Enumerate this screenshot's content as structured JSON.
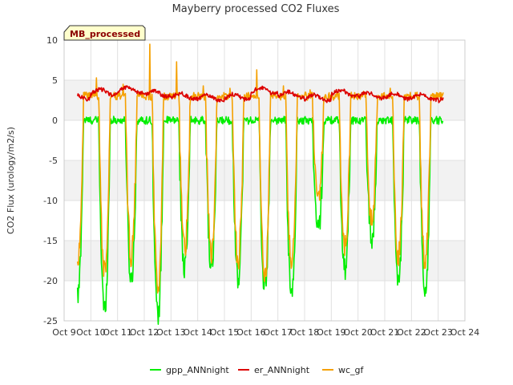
{
  "chart_data": {
    "type": "line",
    "title": "Mayberry processed CO2 Fluxes",
    "xlabel": "",
    "ylabel": "CO2 Flux (urology/m2/s)",
    "badge": "MB_processed",
    "x_ticks": [
      "Oct 9",
      "Oct 10",
      "Oct 11",
      "Oct 12",
      "Oct 13",
      "Oct 14",
      "Oct 15",
      "Oct 16",
      "Oct 17",
      "Oct 18",
      "Oct 19",
      "Oct 20",
      "Oct 21",
      "Oct 22",
      "Oct 23",
      "Oct 24"
    ],
    "xlim": [
      9,
      24
    ],
    "ylim": [
      -25,
      10
    ],
    "y_ticks": [
      -25,
      -20,
      -15,
      -10,
      -5,
      0,
      5,
      10
    ],
    "y_tick_labels": [
      "-25",
      "-20",
      "-15",
      "-10",
      "-5",
      "0",
      "5",
      "10"
    ],
    "bands": [
      [
        -20,
        -15
      ],
      [
        -10,
        -5
      ],
      [
        0,
        5
      ]
    ],
    "data_start_day": 9.5,
    "data_end_day": 23.2,
    "series": [
      {
        "name": "gpp_ANNnight",
        "color": "#00ee00",
        "night_level": 0.0,
        "day_minimums": [
          -22,
          -23.7,
          -20,
          -24.5,
          -18.5,
          -18.5,
          -19.5,
          -21,
          -22,
          -13.8,
          -18.5,
          -14.8,
          -20.5,
          -21.5
        ]
      },
      {
        "name": "er_ANNnight",
        "color": "#dd0000",
        "levels": [
          3.0,
          3.5,
          3.8,
          3.3,
          3.0,
          2.8,
          2.9,
          3.7,
          3.2,
          2.8,
          3.4,
          3.1,
          3.0,
          2.9,
          2.6
        ]
      },
      {
        "name": "wc_gf",
        "color": "#f5a000",
        "night_level": 3.0,
        "day_minimums": [
          -17.5,
          -19,
          -17,
          -21,
          -16,
          -16.5,
          -17.5,
          -19.5,
          -18,
          -10,
          -15.5,
          -12.5,
          -17,
          -17.5
        ],
        "spikes": [
          4.5,
          5.3,
          4.5,
          9.5,
          7.3,
          4.3,
          4.0,
          6.3,
          4.3,
          3.8,
          3.6,
          3.6,
          4.0,
          3.5
        ]
      }
    ]
  }
}
